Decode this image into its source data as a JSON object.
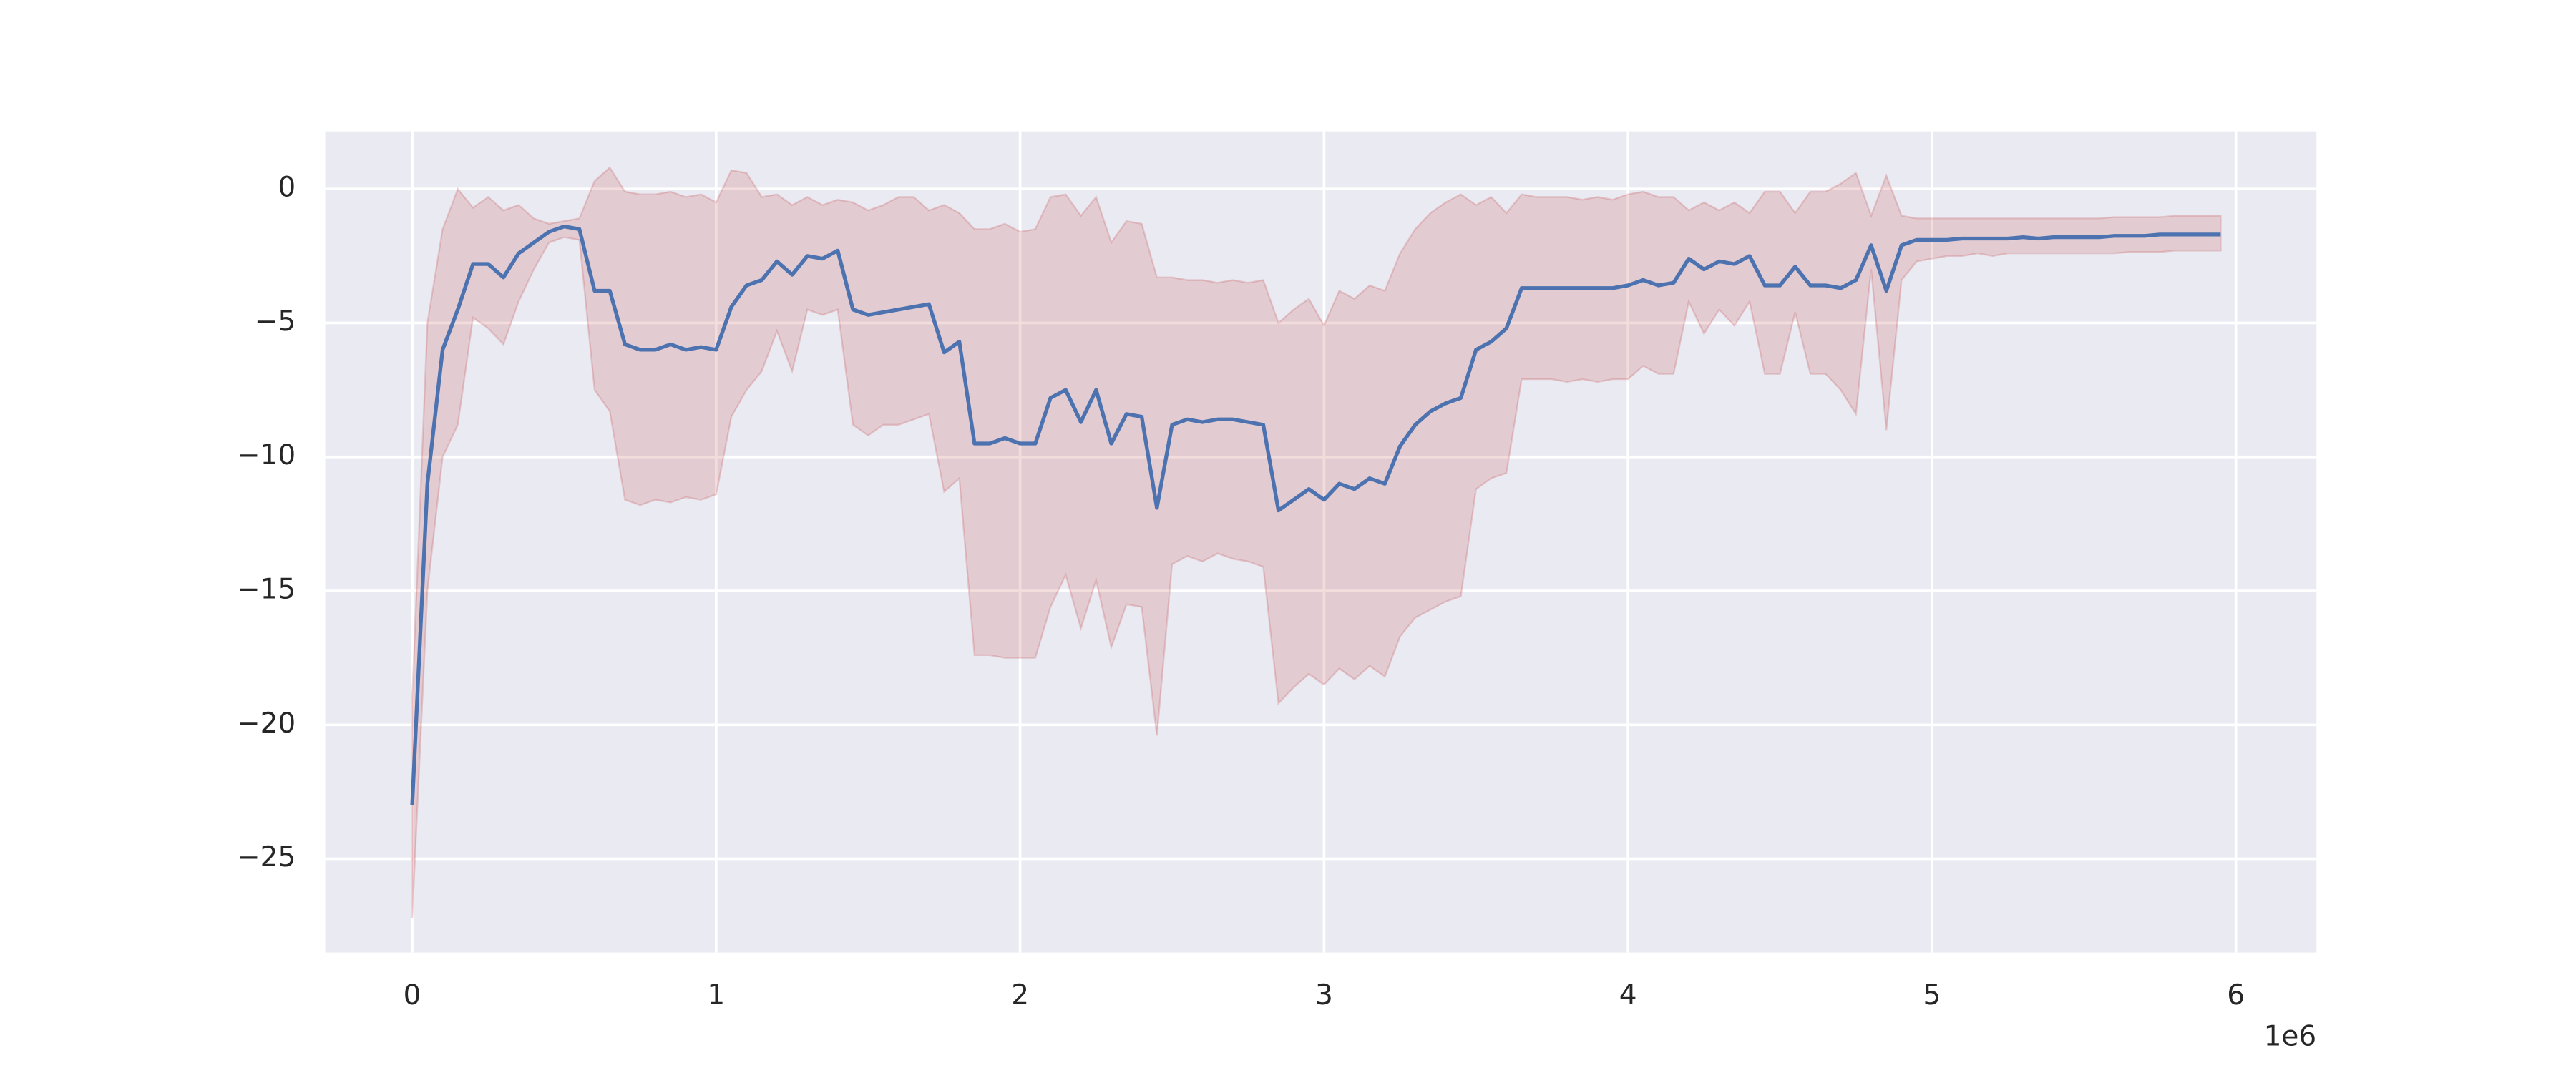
{
  "chart_data": {
    "type": "line",
    "x": [
      0,
      50000,
      100000,
      150000,
      200000,
      250000,
      300000,
      350000,
      400000,
      450000,
      500000,
      550000,
      600000,
      650000,
      700000,
      750000,
      800000,
      850000,
      900000,
      950000,
      1000000,
      1050000,
      1100000,
      1150000,
      1200000,
      1250000,
      1300000,
      1350000,
      1400000,
      1450000,
      1500000,
      1550000,
      1600000,
      1650000,
      1700000,
      1750000,
      1800000,
      1850000,
      1900000,
      1950000,
      2000000,
      2050000,
      2100000,
      2150000,
      2200000,
      2250000,
      2300000,
      2350000,
      2400000,
      2450000,
      2500000,
      2550000,
      2600000,
      2650000,
      2700000,
      2750000,
      2800000,
      2850000,
      2900000,
      2950000,
      3000000,
      3050000,
      3100000,
      3150000,
      3200000,
      3250000,
      3300000,
      3350000,
      3400000,
      3450000,
      3500000,
      3550000,
      3600000,
      3650000,
      3700000,
      3750000,
      3800000,
      3850000,
      3900000,
      3950000,
      4000000,
      4050000,
      4100000,
      4150000,
      4200000,
      4250000,
      4300000,
      4350000,
      4400000,
      4450000,
      4500000,
      4550000,
      4600000,
      4650000,
      4700000,
      4750000,
      4800000,
      4850000,
      4900000,
      4950000,
      5000000,
      5050000,
      5100000,
      5150000,
      5200000,
      5250000,
      5300000,
      5350000,
      5400000,
      5450000,
      5500000,
      5550000,
      5600000,
      5650000,
      5700000,
      5750000,
      5800000,
      5850000,
      5900000,
      5950000
    ],
    "series": [
      {
        "color": "#4c72b0",
        "band_color": "#c44e52",
        "values": [
          -23,
          -11,
          -6,
          -4.5,
          -2.8,
          -2.8,
          -3.3,
          -2.4,
          -2,
          -1.6,
          -1.4,
          -1.5,
          -3.8,
          -3.8,
          -5.8,
          -6,
          -6,
          -5.8,
          -6,
          -5.9,
          -6,
          -4.4,
          -3.6,
          -3.4,
          -2.7,
          -3.2,
          -2.5,
          -2.6,
          -2.3,
          -4.5,
          -4.7,
          -4.6,
          -4.5,
          -4.4,
          -4.3,
          -6.1,
          -5.7,
          -9.5,
          -9.5,
          -9.3,
          -9.5,
          -9.5,
          -7.8,
          -7.5,
          -8.7,
          -7.5,
          -9.5,
          -8.4,
          -8.5,
          -11.9,
          -8.8,
          -8.6,
          -8.7,
          -8.6,
          -8.6,
          -8.7,
          -8.8,
          -12,
          -11.6,
          -11.2,
          -11.6,
          -11,
          -11.2,
          -10.8,
          -11,
          -9.6,
          -8.8,
          -8.3,
          -8,
          -7.8,
          -6,
          -5.7,
          -5.2,
          -3.7,
          -3.7,
          -3.7,
          -3.7,
          -3.7,
          -3.7,
          -3.7,
          -3.6,
          -3.4,
          -3.6,
          -3.5,
          -2.6,
          -3,
          -2.7,
          -2.8,
          -2.5,
          -3.6,
          -3.6,
          -2.9,
          -3.6,
          -3.6,
          -3.7,
          -3.4,
          -2.1,
          -3.8,
          -2.1,
          -1.9,
          -1.9,
          -1.9,
          -1.85,
          -1.85,
          -1.85,
          -1.85,
          -1.8,
          -1.85,
          -1.8,
          -1.8,
          -1.8,
          -1.8,
          -1.75,
          -1.75,
          -1.75,
          -1.7,
          -1.7,
          -1.7,
          -1.7,
          -1.7
        ],
        "upper": [
          -19,
          -5,
          -1.5,
          0,
          -0.7,
          -0.3,
          -0.8,
          -0.6,
          -1.1,
          -1.3,
          -1.2,
          -1.1,
          0.3,
          0.8,
          -0.1,
          -0.2,
          -0.2,
          -0.1,
          -0.3,
          -0.2,
          -0.5,
          0.7,
          0.6,
          -0.3,
          -0.2,
          -0.6,
          -0.3,
          -0.6,
          -0.4,
          -0.5,
          -0.8,
          -0.6,
          -0.3,
          -0.3,
          -0.8,
          -0.6,
          -0.9,
          -1.5,
          -1.5,
          -1.3,
          -1.6,
          -1.5,
          -0.3,
          -0.2,
          -1,
          -0.3,
          -2,
          -1.2,
          -1.3,
          -3.3,
          -3.3,
          -3.4,
          -3.4,
          -3.5,
          -3.4,
          -3.5,
          -3.4,
          -5,
          -4.5,
          -4.1,
          -5.1,
          -3.8,
          -4.1,
          -3.6,
          -3.8,
          -2.4,
          -1.5,
          -0.9,
          -0.5,
          -0.2,
          -0.6,
          -0.3,
          -0.9,
          -0.2,
          -0.3,
          -0.3,
          -0.3,
          -0.4,
          -0.3,
          -0.4,
          -0.2,
          -0.1,
          -0.3,
          -0.3,
          -0.8,
          -0.5,
          -0.8,
          -0.5,
          -0.9,
          -0.1,
          -0.1,
          -0.9,
          -0.1,
          -0.1,
          0.2,
          0.6,
          -1,
          0.5,
          -1,
          -1.1,
          -1.1,
          -1.1,
          -1.1,
          -1.1,
          -1.1,
          -1.1,
          -1.1,
          -1.1,
          -1.1,
          -1.1,
          -1.1,
          -1.1,
          -1.05,
          -1.05,
          -1.05,
          -1.05,
          -1,
          -1,
          -1,
          -1
        ],
        "lower": [
          -27.2,
          -15,
          -10,
          -8.8,
          -4.8,
          -5.2,
          -5.8,
          -4.2,
          -3,
          -2,
          -1.8,
          -1.9,
          -7.5,
          -8.3,
          -11.6,
          -11.8,
          -11.6,
          -11.7,
          -11.5,
          -11.6,
          -11.4,
          -8.5,
          -7.5,
          -6.8,
          -5.3,
          -6.8,
          -4.5,
          -4.7,
          -4.5,
          -8.8,
          -9.2,
          -8.8,
          -8.8,
          -8.6,
          -8.4,
          -11.3,
          -10.8,
          -17.4,
          -17.4,
          -17.5,
          -17.5,
          -17.5,
          -15.6,
          -14.4,
          -16.4,
          -14.6,
          -17.1,
          -15.5,
          -15.6,
          -20.4,
          -14,
          -13.7,
          -13.9,
          -13.6,
          -13.8,
          -13.9,
          -14.1,
          -19.2,
          -18.6,
          -18.1,
          -18.5,
          -17.9,
          -18.3,
          -17.8,
          -18.2,
          -16.7,
          -16,
          -15.7,
          -15.4,
          -15.2,
          -11.2,
          -10.8,
          -10.6,
          -7.1,
          -7.1,
          -7.1,
          -7.2,
          -7.1,
          -7.2,
          -7.1,
          -7.1,
          -6.6,
          -6.9,
          -6.9,
          -4.2,
          -5.4,
          -4.5,
          -5.1,
          -4.2,
          -6.9,
          -6.9,
          -4.6,
          -6.9,
          -6.9,
          -7.5,
          -8.4,
          -3,
          -9,
          -3.4,
          -2.7,
          -2.6,
          -2.5,
          -2.5,
          -2.4,
          -2.5,
          -2.4,
          -2.4,
          -2.4,
          -2.4,
          -2.4,
          -2.4,
          -2.4,
          -2.4,
          -2.35,
          -2.35,
          -2.35,
          -2.3,
          -2.3,
          -2.3,
          -2.3
        ]
      }
    ],
    "xlim": [
      -286000,
      6265000
    ],
    "xticks": [
      0,
      {
        "value": 1000000,
        "label": "1"
      },
      {
        "value": 2000000,
        "label": "2"
      },
      {
        "value": 3000000,
        "label": "3"
      },
      {
        "value": 4000000,
        "label": "4"
      },
      {
        "value": 5000000,
        "label": "5"
      },
      {
        "value": 6000000,
        "label": "6"
      }
    ],
    "x_offset_label": "1e6",
    "ylim": [
      -28.5,
      2.15
    ],
    "yticks": [
      {
        "value": -25,
        "label": "−25"
      },
      {
        "value": -20,
        "label": "−20"
      },
      {
        "value": -15,
        "label": "−15"
      },
      {
        "value": -10,
        "label": "−10"
      },
      {
        "value": -5,
        "label": "−5"
      },
      0
    ],
    "grid": true,
    "background": "#eaeaf2"
  }
}
